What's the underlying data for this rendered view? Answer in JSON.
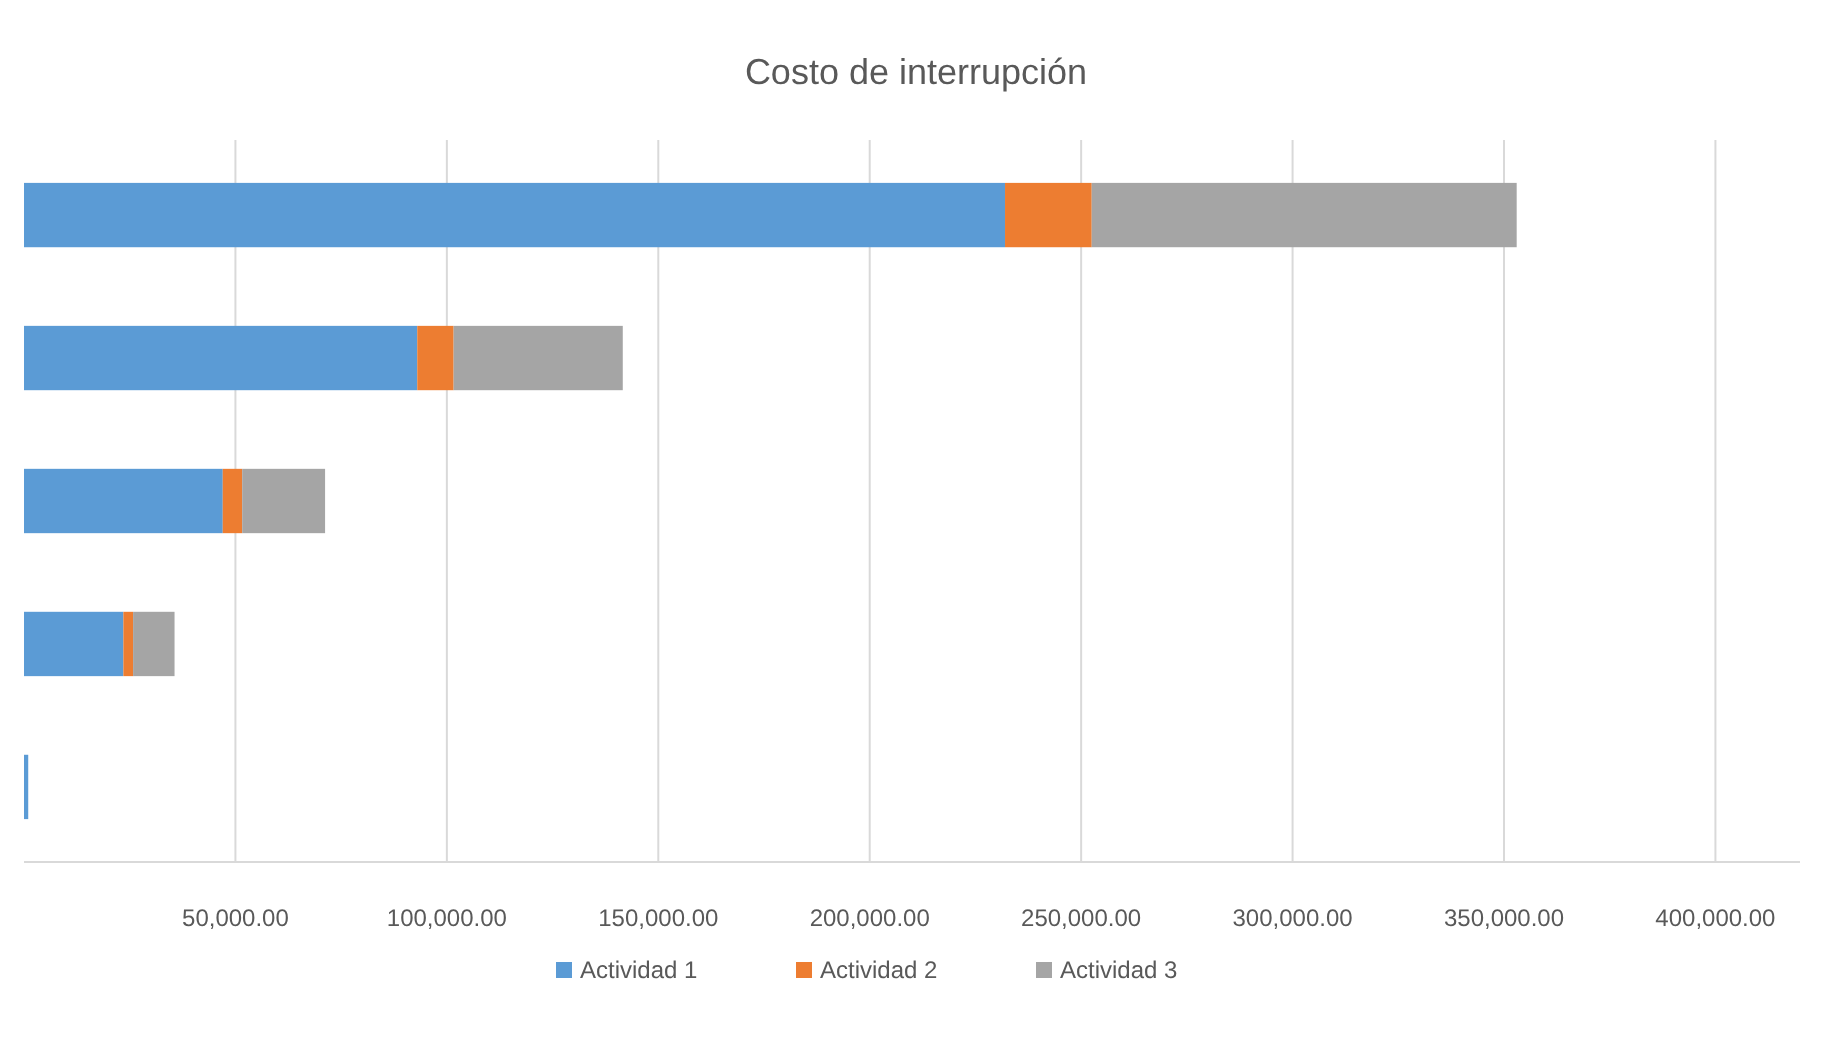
{
  "chart_data": {
    "type": "bar",
    "title": "Costo de interrupción",
    "orientation": "horizontal",
    "stacked": true,
    "categories": [
      null,
      null,
      null,
      null,
      null
    ],
    "series": [
      {
        "name": "Actividad 1",
        "color": "#5b9bd5",
        "values": [
          232000,
          93000,
          47000,
          23500,
          1000
        ]
      },
      {
        "name": "Actividad 2",
        "color": "#ed7d31",
        "values": [
          20500,
          8600,
          4600,
          2300,
          null
        ]
      },
      {
        "name": "Actividad 3",
        "color": "#a5a5a5",
        "values": [
          100500,
          40000,
          19600,
          9800,
          null
        ]
      }
    ],
    "xlim": [
      0,
      420000
    ],
    "xticks": [
      {
        "value": 50000,
        "label": "50,000.00"
      },
      {
        "value": 100000,
        "label": "100,000.00"
      },
      {
        "value": 150000,
        "label": "150,000.00"
      },
      {
        "value": 200000,
        "label": "200,000.00"
      },
      {
        "value": 250000,
        "label": "250,000.00"
      },
      {
        "value": 300000,
        "label": "300,000.00"
      },
      {
        "value": 350000,
        "label": "350,000.00"
      },
      {
        "value": 400000,
        "label": "400,000.00"
      }
    ],
    "grid": "x",
    "legend": "bottom"
  }
}
